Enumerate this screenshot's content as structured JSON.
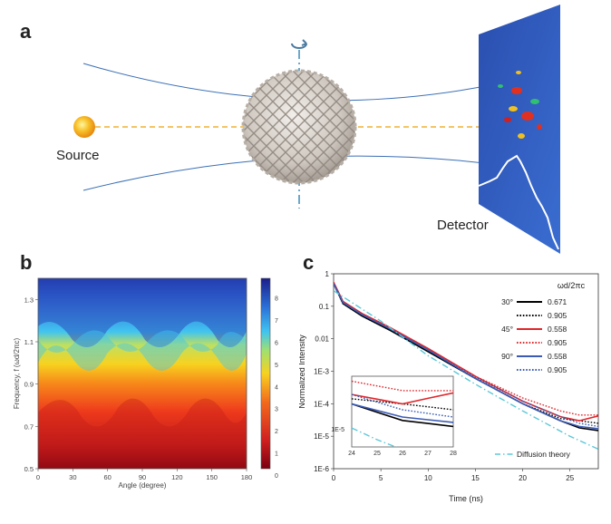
{
  "panel_a": {
    "letter": "a",
    "source_label": "Source",
    "detector_label": "Detector",
    "colors": {
      "beam": "#f0b030",
      "source": "#f7c12a",
      "orbit": "#3a6fb5",
      "axis": "#6fa9c8"
    }
  },
  "panel_b": {
    "letter": "b",
    "xlabel": "Angle (degree)",
    "ylabel": "Frequency, f (ωd/2πc)",
    "xticks": [
      "0",
      "30",
      "60",
      "90",
      "120",
      "150",
      "180"
    ],
    "yticks": [
      "0.5",
      "0.7",
      "0.9",
      "1.1",
      "1.3"
    ],
    "colorbar_ticks": [
      "8",
      "7",
      "6",
      "5",
      "4",
      "3",
      "2",
      "1",
      "0"
    ]
  },
  "panel_c": {
    "letter": "c",
    "xlabel": "Time (ns)",
    "ylabel": "Normalized Intensity",
    "xticks": [
      "0",
      "5",
      "10",
      "15",
      "20",
      "25"
    ],
    "yticks": [
      "1",
      "0.1",
      "0.01",
      "1E-3",
      "1E-4",
      "1E-5",
      "1E-6"
    ],
    "legend_header": "ωd/2πc",
    "legend": [
      {
        "angle": "30°",
        "value": "0.671",
        "color": "#000000",
        "style": "solid"
      },
      {
        "angle": "",
        "value": "0.905",
        "color": "#000000",
        "style": "dotted"
      },
      {
        "angle": "45°",
        "value": "0.558",
        "color": "#e0262b",
        "style": "solid"
      },
      {
        "angle": "",
        "value": "0.905",
        "color": "#e0262b",
        "style": "dotted"
      },
      {
        "angle": "90°",
        "value": "0.558",
        "color": "#3b5bb5",
        "style": "solid"
      },
      {
        "angle": "",
        "value": "0.905",
        "color": "#3b5bb5",
        "style": "dotted"
      }
    ],
    "diffusion_label": "Diffusion theory",
    "inset": {
      "xticks": [
        "24",
        "25",
        "26",
        "27",
        "28"
      ],
      "ytick": "1E-5"
    }
  },
  "chart_data": [
    {
      "type": "heatmap",
      "xlabel": "Angle (degree)",
      "ylabel": "Frequency, f (ωd/2πc)",
      "xlim": [
        0,
        180
      ],
      "ylim": [
        0.5,
        1.4
      ],
      "colorbar_range": [
        0,
        8
      ],
      "colormap": "jet"
    },
    {
      "type": "line",
      "xlabel": "Time (ns)",
      "ylabel": "Normalized Intensity",
      "yscale": "log",
      "xlim": [
        0,
        28
      ],
      "ylim": [
        1e-06,
        1
      ],
      "series": [
        {
          "name": "30° 0.671",
          "color": "#000000",
          "dash": "solid",
          "x": [
            0,
            1,
            3,
            6,
            10,
            15,
            20,
            24,
            26,
            28
          ],
          "y": [
            0.5,
            0.12,
            0.05,
            0.018,
            0.004,
            0.0006,
            0.0001,
            3e-05,
            1.8e-05,
            1.5e-05
          ]
        },
        {
          "name": "30° 0.905",
          "color": "#000000",
          "dash": "dotted",
          "x": [
            0,
            1,
            3,
            6,
            10,
            15,
            20,
            24,
            26,
            28
          ],
          "y": [
            0.5,
            0.12,
            0.05,
            0.018,
            0.004,
            0.0006,
            0.0001,
            3.5e-05,
            3e-05,
            2.5e-05
          ]
        },
        {
          "name": "45° 0.558",
          "color": "#e0262b",
          "dash": "solid",
          "x": [
            0,
            1,
            3,
            6,
            10,
            15,
            20,
            24,
            26,
            28
          ],
          "y": [
            0.55,
            0.14,
            0.06,
            0.022,
            0.005,
            0.0007,
            0.00012,
            4e-05,
            3e-05,
            4.2e-05
          ]
        },
        {
          "name": "45° 0.905",
          "color": "#e0262b",
          "dash": "dotted",
          "x": [
            0,
            1,
            3,
            6,
            10,
            15,
            20,
            24,
            26,
            28
          ],
          "y": [
            0.55,
            0.14,
            0.06,
            0.022,
            0.005,
            0.0007,
            0.00015,
            6e-05,
            4.5e-05,
            4.5e-05
          ]
        },
        {
          "name": "90° 0.558",
          "color": "#3b5bb5",
          "dash": "solid",
          "x": [
            0,
            1,
            3,
            6,
            10,
            15,
            20,
            24,
            26,
            28
          ],
          "y": [
            0.5,
            0.13,
            0.055,
            0.02,
            0.0045,
            0.0006,
            0.0001,
            3e-05,
            2e-05,
            1.7e-05
          ]
        },
        {
          "name": "90° 0.905",
          "color": "#3b5bb5",
          "dash": "dotted",
          "x": [
            0,
            1,
            3,
            6,
            10,
            15,
            20,
            24,
            26,
            28
          ],
          "y": [
            0.5,
            0.13,
            0.055,
            0.02,
            0.0045,
            0.00065,
            0.00012,
            4e-05,
            2.5e-05,
            2e-05
          ]
        },
        {
          "name": "Diffusion theory",
          "color": "#5bc8d8",
          "dash": "dashdot",
          "x": [
            0,
            5,
            10,
            15,
            20,
            25,
            28
          ],
          "y": [
            0.3,
            0.035,
            0.003,
            0.0004,
            6e-05,
            1e-05,
            4e-06
          ]
        }
      ]
    }
  ]
}
